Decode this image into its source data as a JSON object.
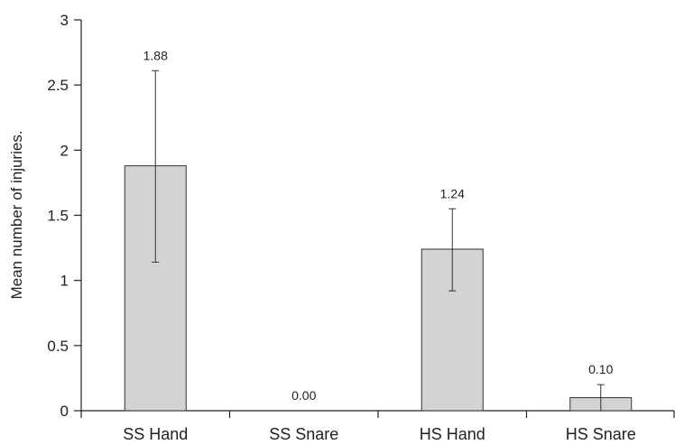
{
  "chart_data": {
    "type": "bar",
    "categories": [
      "SS Hand",
      "SS Snare",
      "HS Hand",
      "HS Snare"
    ],
    "values": [
      1.88,
      0.0,
      1.24,
      0.1
    ],
    "error_low": [
      1.14,
      0.0,
      0.92,
      0.0
    ],
    "error_high": [
      2.61,
      0.0,
      1.55,
      0.2
    ],
    "data_labels": [
      "1.88",
      "0.00",
      "1.24",
      "0.10"
    ],
    "title": "",
    "xlabel": "",
    "ylabel": "Mean number of injuries.",
    "ylim": [
      0,
      3
    ],
    "yticks": [
      "0",
      "0.5",
      "1",
      "1.5",
      "2",
      "2.5",
      "3"
    ],
    "grid": false,
    "bar_color": "#d3d3d3"
  }
}
